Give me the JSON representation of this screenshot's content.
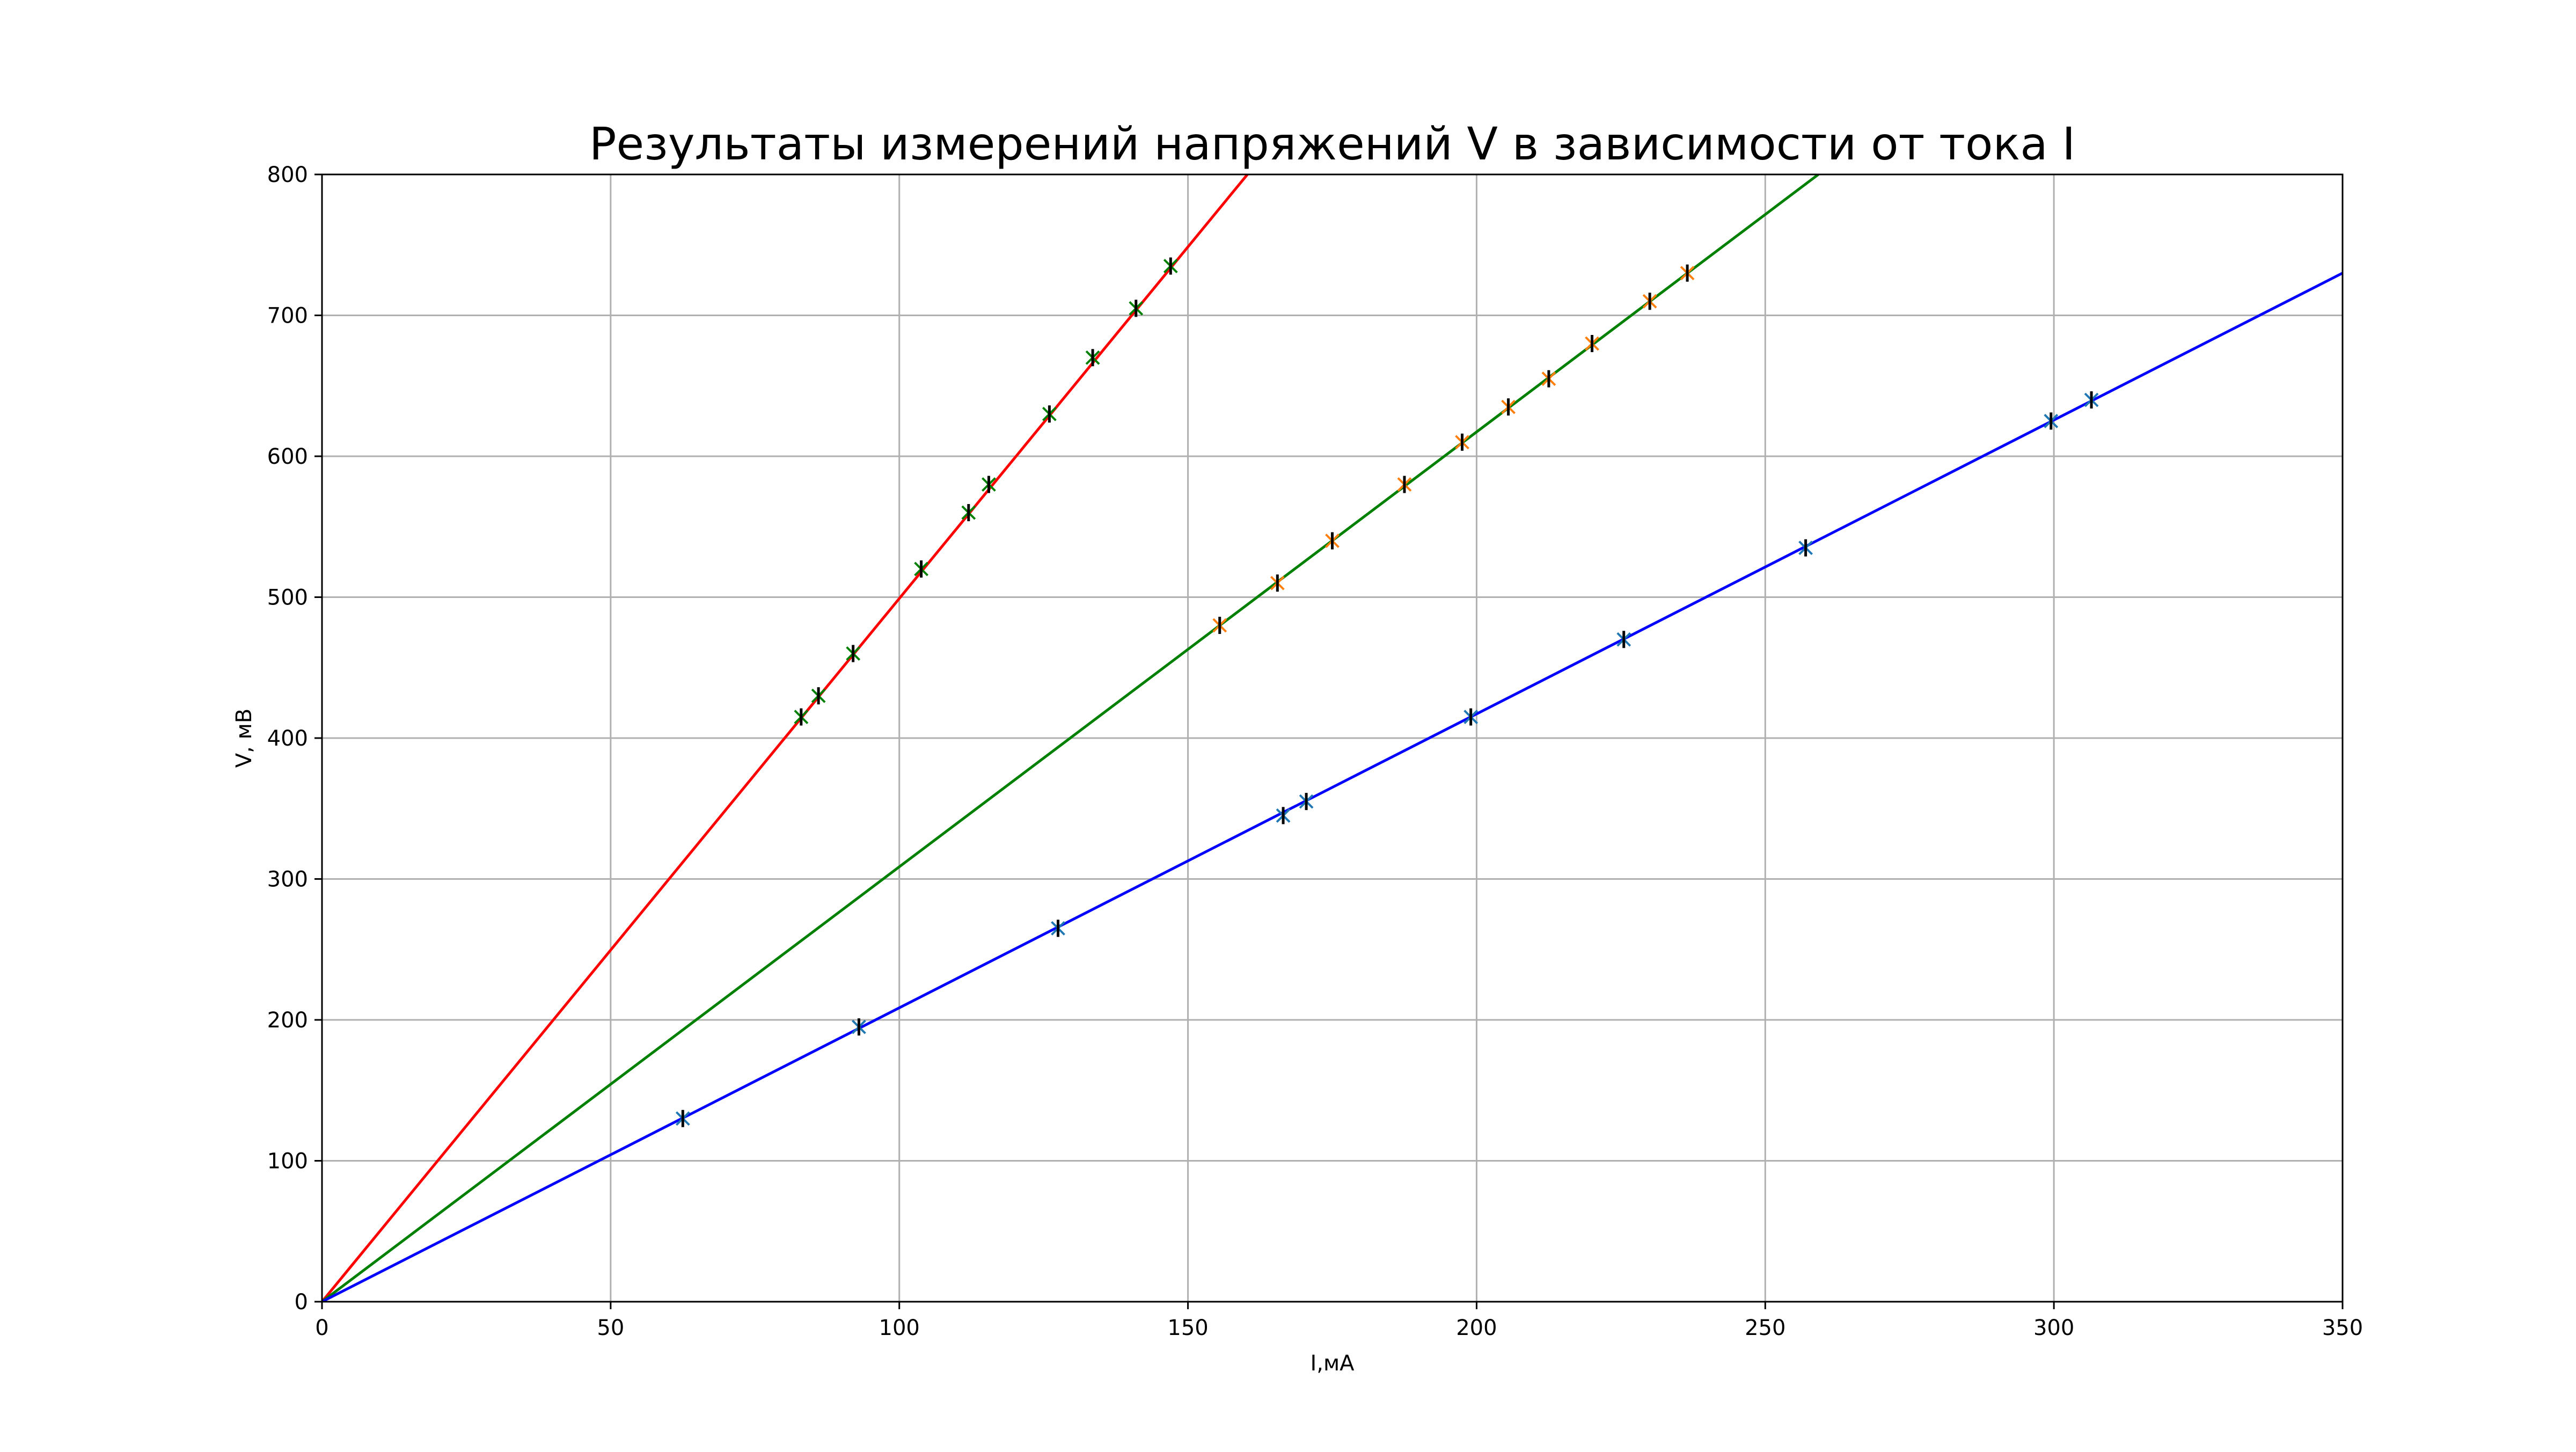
{
  "chart_data": {
    "type": "line",
    "title": "Результаты измерений напряжений V в зависимости от тока I",
    "xlabel": "I,мА",
    "ylabel": "V, мВ",
    "xlim": [
      0,
      350
    ],
    "ylim": [
      0,
      800
    ],
    "xticks": [
      0,
      50,
      100,
      150,
      200,
      250,
      300,
      350
    ],
    "yticks": [
      0,
      100,
      200,
      300,
      400,
      500,
      600,
      700,
      800
    ],
    "grid": true,
    "series": [
      {
        "color": "#ff0000",
        "line": {
          "x": [
            0,
            160.3
          ],
          "y": [
            0,
            800
          ]
        },
        "points": {
          "x": [
            83.0,
            86.0,
            92.0,
            103.8,
            112.0,
            115.5,
            126.0,
            133.5,
            141.0,
            147.0
          ],
          "y": [
            415,
            430,
            460,
            520,
            560,
            580,
            630,
            670,
            705,
            735
          ]
        },
        "marker_colors": [
          "#008000",
          "#000000"
        ]
      },
      {
        "color": "#008000",
        "line": {
          "x": [
            0,
            259.2
          ],
          "y": [
            0,
            800
          ]
        },
        "points": {
          "x": [
            155.5,
            165.5,
            175.0,
            187.5,
            197.5,
            205.5,
            212.5,
            220.0,
            230.0,
            236.5
          ],
          "y": [
            480,
            510,
            540,
            580,
            610,
            635,
            655,
            680,
            710,
            730
          ]
        },
        "marker_colors": [
          "#ff7f0e",
          "#000000"
        ]
      },
      {
        "color": "#0000ff",
        "line": {
          "x": [
            0,
            350
          ],
          "y": [
            0,
            730
          ]
        },
        "points": {
          "x": [
            62.5,
            93.0,
            127.5,
            166.5,
            170.5,
            199.0,
            225.5,
            257.0,
            299.5,
            306.5
          ],
          "y": [
            130,
            195,
            265,
            345,
            355,
            415,
            470,
            535,
            625,
            640
          ]
        },
        "marker_colors": [
          "#1f77b4",
          "#000000"
        ]
      }
    ]
  }
}
